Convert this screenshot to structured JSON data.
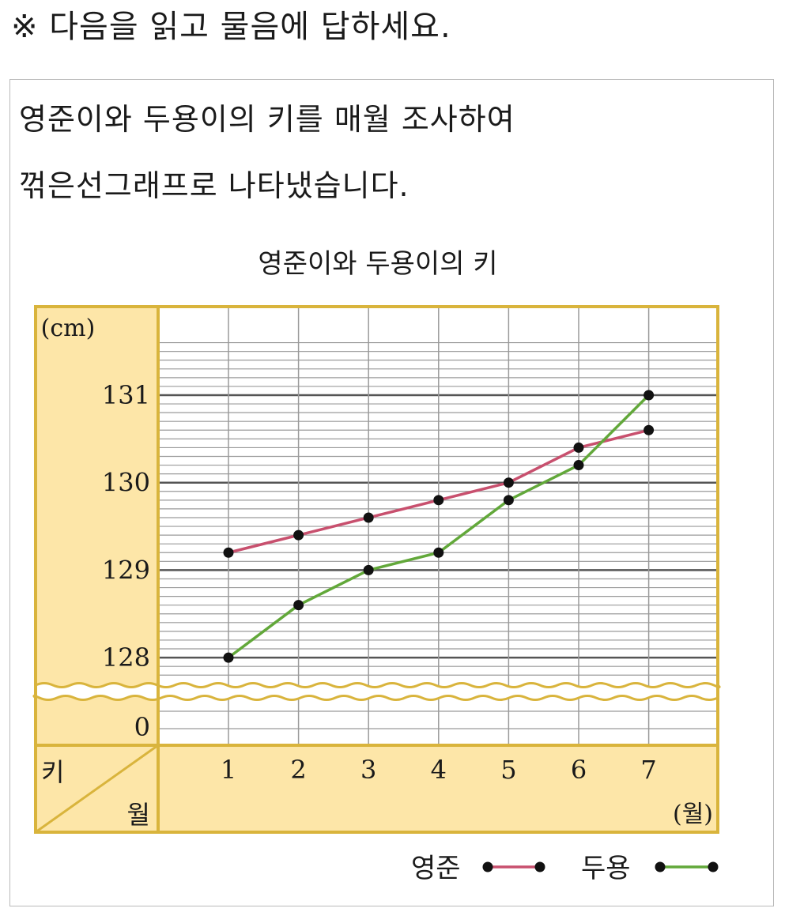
{
  "instruction": "※ 다음을 읽고 물음에 답하세요.",
  "description": {
    "line1": "영준이와 두용이의 키를 매월 조사하여",
    "line2": "꺾은선그래프로 나타냈습니다."
  },
  "colors": {
    "panel": "#fde6a8",
    "frame": "#d9b43c",
    "series_yeongjun": "#c8506e",
    "series_duyong": "#62a83a",
    "marker": "#111111"
  },
  "chart_data": {
    "type": "line",
    "title": "영준이와 두용이의 키",
    "ylabel_unit": "(cm)",
    "xlabel_unit": "(월)",
    "corner_label_top": "키",
    "corner_label_bottom": "월",
    "x": [
      1,
      2,
      3,
      4,
      5,
      6,
      7
    ],
    "x_tick_labels": [
      "1",
      "2",
      "3",
      "4",
      "5",
      "6",
      "7"
    ],
    "y_tick_labels": [
      "131",
      "130",
      "129",
      "128",
      "0"
    ],
    "y_ticks": [
      131,
      130,
      129,
      128
    ],
    "ylim": [
      127.8,
      131.7
    ],
    "y_axis_break": true,
    "grid": true,
    "legend_position": "bottom-right",
    "series": [
      {
        "name": "영준",
        "values": [
          129.2,
          129.4,
          129.6,
          129.8,
          130.0,
          130.4,
          130.6
        ]
      },
      {
        "name": "두용",
        "values": [
          128.0,
          128.6,
          129.0,
          129.2,
          129.8,
          130.2,
          131.0
        ]
      }
    ]
  }
}
